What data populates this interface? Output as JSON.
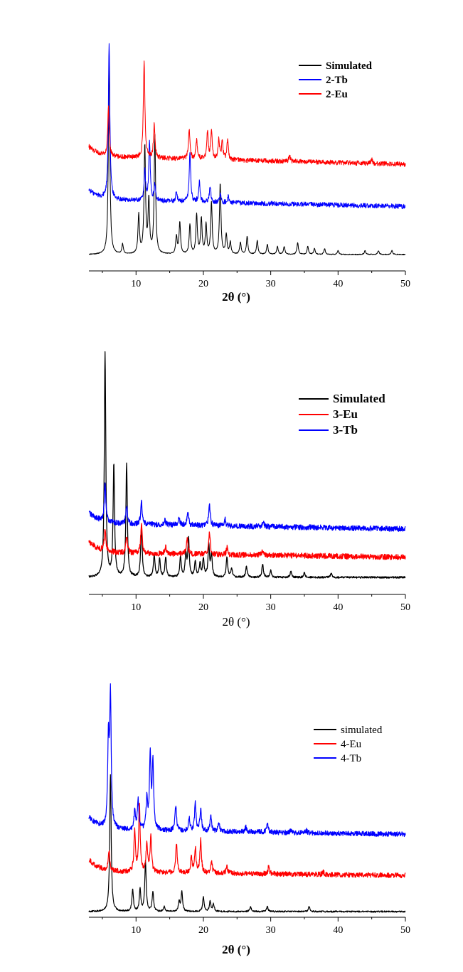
{
  "chart_data": [
    {
      "type": "line",
      "xlabel": "2θ (°)",
      "xlim": [
        3,
        50
      ],
      "xticks": [
        "10",
        "20",
        "30",
        "40",
        "50"
      ],
      "y_axis_shown": false,
      "legend_position": "top-right",
      "series": [
        {
          "name": "Simulated",
          "color": "#000000",
          "baseline": 0,
          "noise": 0.002,
          "slope": 0.0,
          "peaks": [
            [
              6.0,
              1.0
            ],
            [
              8.0,
              0.05
            ],
            [
              10.4,
              0.2
            ],
            [
              11.3,
              0.55
            ],
            [
              11.9,
              0.27
            ],
            [
              12.8,
              0.6
            ],
            [
              16.0,
              0.09
            ],
            [
              16.5,
              0.16
            ],
            [
              18.0,
              0.15
            ],
            [
              19.0,
              0.2
            ],
            [
              19.7,
              0.18
            ],
            [
              20.4,
              0.15
            ],
            [
              21.2,
              0.26
            ],
            [
              22.5,
              0.36
            ],
            [
              23.4,
              0.1
            ],
            [
              24.0,
              0.06
            ],
            [
              25.5,
              0.06
            ],
            [
              26.5,
              0.09
            ],
            [
              28.0,
              0.07
            ],
            [
              29.5,
              0.05
            ],
            [
              31.0,
              0.04
            ],
            [
              32.0,
              0.04
            ],
            [
              34.0,
              0.06
            ],
            [
              35.5,
              0.04
            ],
            [
              36.5,
              0.03
            ],
            [
              38.0,
              0.03
            ],
            [
              40.0,
              0.02
            ],
            [
              44.0,
              0.02
            ],
            [
              46.0,
              0.02
            ],
            [
              48.0,
              0.02
            ]
          ]
        },
        {
          "name": "2-Tb",
          "color": "#0000ff",
          "baseline": 0.28,
          "noise": 0.012,
          "slope": -0.035,
          "peaks": [
            [
              6.0,
              0.8
            ],
            [
              11.3,
              0.15
            ],
            [
              12.0,
              0.3
            ],
            [
              12.8,
              0.08
            ],
            [
              16.0,
              0.05
            ],
            [
              18.0,
              0.25
            ],
            [
              19.4,
              0.1
            ],
            [
              21.0,
              0.08
            ],
            [
              22.5,
              0.04
            ],
            [
              23.7,
              0.03
            ]
          ]
        },
        {
          "name": "2-Eu",
          "color": "#ff0000",
          "baseline": 0.5,
          "noise": 0.012,
          "slope": -0.04,
          "peaks": [
            [
              5.9,
              0.25
            ],
            [
              11.2,
              0.5
            ],
            [
              12.7,
              0.17
            ],
            [
              17.9,
              0.15
            ],
            [
              19.0,
              0.1
            ],
            [
              20.6,
              0.14
            ],
            [
              21.2,
              0.15
            ],
            [
              22.3,
              0.1
            ],
            [
              22.8,
              0.09
            ],
            [
              23.6,
              0.1
            ],
            [
              32.8,
              0.03
            ],
            [
              45.0,
              0.02
            ]
          ]
        }
      ]
    },
    {
      "type": "line",
      "xlabel": "2θ (°)",
      "xlim": [
        3,
        50
      ],
      "xticks": [
        "10",
        "20",
        "30",
        "40",
        "50"
      ],
      "y_axis_shown": false,
      "legend_position": "top-right",
      "series": [
        {
          "name": "Simulated",
          "color": "#000000",
          "baseline": 0,
          "noise": 0.004,
          "slope": 0.0,
          "peaks": [
            [
              5.4,
              1.0
            ],
            [
              6.7,
              0.5
            ],
            [
              8.6,
              0.5
            ],
            [
              10.8,
              0.23
            ],
            [
              12.7,
              0.1
            ],
            [
              13.5,
              0.08
            ],
            [
              14.4,
              0.09
            ],
            [
              16.6,
              0.09
            ],
            [
              17.4,
              0.1
            ],
            [
              17.8,
              0.17
            ],
            [
              18.8,
              0.07
            ],
            [
              19.5,
              0.06
            ],
            [
              20.0,
              0.08
            ],
            [
              20.8,
              0.14
            ],
            [
              21.2,
              0.1
            ],
            [
              23.5,
              0.09
            ],
            [
              24.2,
              0.04
            ],
            [
              26.4,
              0.05
            ],
            [
              28.8,
              0.06
            ],
            [
              30.0,
              0.03
            ],
            [
              33.0,
              0.03
            ],
            [
              35.0,
              0.02
            ],
            [
              39.0,
              0.02
            ]
          ]
        },
        {
          "name": "3-Eu",
          "color": "#ff0000",
          "baseline": 0.11,
          "noise": 0.012,
          "slope": -0.02,
          "peaks": [
            [
              5.4,
              0.1
            ],
            [
              8.6,
              0.08
            ],
            [
              10.8,
              0.13
            ],
            [
              14.4,
              0.03
            ],
            [
              17.6,
              0.08
            ],
            [
              20.9,
              0.1
            ],
            [
              23.5,
              0.03
            ],
            [
              28.8,
              0.02
            ]
          ]
        },
        {
          "name": "3-Tb",
          "color": "#0000ff",
          "baseline": 0.24,
          "noise": 0.012,
          "slope": -0.025,
          "peaks": [
            [
              5.4,
              0.18
            ],
            [
              8.6,
              0.08
            ],
            [
              10.8,
              0.1
            ],
            [
              14.3,
              0.02
            ],
            [
              16.4,
              0.03
            ],
            [
              17.7,
              0.06
            ],
            [
              20.9,
              0.1
            ],
            [
              23.2,
              0.03
            ],
            [
              28.9,
              0.02
            ]
          ]
        }
      ]
    },
    {
      "type": "line",
      "xlabel": "2θ (°)",
      "xlim": [
        3,
        50
      ],
      "xticks": [
        "10",
        "20",
        "30",
        "40",
        "50"
      ],
      "y_axis_shown": false,
      "legend_position": "top-right",
      "series": [
        {
          "name": "simulated",
          "color": "#000000",
          "baseline": 0,
          "noise": 0.003,
          "slope": 0.0,
          "peaks": [
            [
              6.2,
              0.55
            ],
            [
              9.5,
              0.09
            ],
            [
              10.6,
              0.09
            ],
            [
              11.4,
              0.2
            ],
            [
              12.5,
              0.08
            ],
            [
              14.2,
              0.02
            ],
            [
              16.4,
              0.04
            ],
            [
              16.8,
              0.08
            ],
            [
              20.0,
              0.06
            ],
            [
              21.0,
              0.04
            ],
            [
              21.5,
              0.03
            ],
            [
              27.0,
              0.02
            ],
            [
              29.5,
              0.02
            ],
            [
              35.7,
              0.02
            ]
          ]
        },
        {
          "name": "4-Eu",
          "color": "#ff0000",
          "baseline": 0.16,
          "noise": 0.01,
          "slope": -0.015,
          "peaks": [
            [
              6.0,
              0.08
            ],
            [
              9.8,
              0.17
            ],
            [
              10.5,
              0.27
            ],
            [
              11.6,
              0.12
            ],
            [
              12.2,
              0.14
            ],
            [
              16.0,
              0.12
            ],
            [
              18.2,
              0.06
            ],
            [
              18.8,
              0.1
            ],
            [
              19.6,
              0.13
            ],
            [
              21.2,
              0.05
            ],
            [
              23.5,
              0.03
            ],
            [
              29.7,
              0.03
            ],
            [
              37.8,
              0.01
            ]
          ]
        },
        {
          "name": "4-Tb",
          "color": "#0000ff",
          "baseline": 0.33,
          "noise": 0.01,
          "slope": -0.02,
          "peaks": [
            [
              5.9,
              0.34
            ],
            [
              6.2,
              0.52
            ],
            [
              9.8,
              0.07
            ],
            [
              10.3,
              0.12
            ],
            [
              11.6,
              0.12
            ],
            [
              12.1,
              0.3
            ],
            [
              12.5,
              0.27
            ],
            [
              15.9,
              0.1
            ],
            [
              17.9,
              0.05
            ],
            [
              18.8,
              0.11
            ],
            [
              19.6,
              0.09
            ],
            [
              21.1,
              0.06
            ],
            [
              22.3,
              0.04
            ],
            [
              26.3,
              0.02
            ],
            [
              29.5,
              0.04
            ],
            [
              33.0,
              0.01
            ],
            [
              35.3,
              0.01
            ]
          ]
        }
      ]
    }
  ]
}
